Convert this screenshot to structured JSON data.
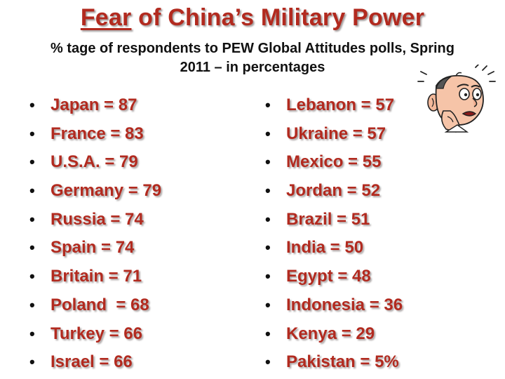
{
  "title": {
    "underlined": "Fear",
    "rest": " of China’s Military Power"
  },
  "subtitle": {
    "line1": "% tage of respondents to PEW Global Attitudes polls, Spring",
    "line2": "2011 – in percentages"
  },
  "left_items": [
    "Japan = 87",
    "France = 83",
    "U.S.A. = 79",
    "Germany = 79",
    "Russia = 74",
    "Spain = 74",
    "Britain = 71",
    "Poland  = 68",
    "Turkey = 66",
    "Israel = 66"
  ],
  "right_items": [
    "Lebanon = 57",
    "Ukraine = 57",
    "Mexico = 55",
    "Jordan = 52",
    "Brazil = 51",
    "India = 50",
    "Egypt = 48",
    "Indonesia = 36",
    "Kenya = 29",
    "Pakistan = 5%"
  ],
  "bullet": "•",
  "clipart": {
    "icon": "worried-man-icon"
  },
  "colors": {
    "accent": "#b22a1f",
    "text": "#111111",
    "shadow": "#a9a3a3"
  }
}
